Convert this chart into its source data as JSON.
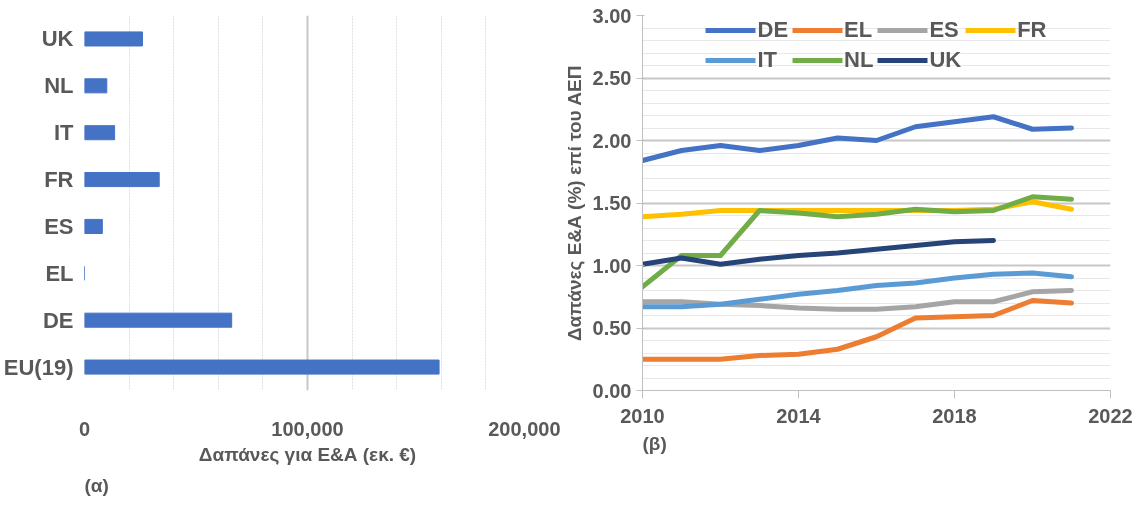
{
  "chart_data": [
    {
      "type": "bar",
      "orientation": "horizontal",
      "xlabel": "Δαπάνες για Ε&Α (εκ. €)",
      "annotations": [
        "(α)"
      ],
      "categories": [
        "UK",
        "NL",
        "IT",
        "FR",
        "ES",
        "EL",
        "DE",
        "EU(19)"
      ],
      "values": [
        26000,
        10000,
        13500,
        33500,
        8000,
        0,
        66000,
        159000
      ],
      "color": "#4472c4",
      "xlim": [
        0,
        200000
      ],
      "xticks": [
        0,
        {
          "value": 100000,
          "label": "100,000"
        },
        {
          "value": 200000,
          "label": "200,000"
        }
      ],
      "grid": "x"
    },
    {
      "type": "line",
      "ylabel": "Δαπάνες Ε&Α (%) επί του ΑΕΠ",
      "annotations": [
        "(β)"
      ],
      "x": [
        2010,
        2011,
        2012,
        2013,
        2014,
        2015,
        2016,
        2017,
        2018,
        2019,
        2020,
        2021
      ],
      "series": [
        {
          "name": "DE",
          "color": "#4472c4",
          "values": [
            1.84,
            1.92,
            1.96,
            1.92,
            1.96,
            2.02,
            2.0,
            2.11,
            2.15,
            2.19,
            2.09,
            2.1
          ]
        },
        {
          "name": "EL",
          "color": "#ed7d31",
          "values": [
            0.25,
            0.25,
            0.25,
            0.28,
            0.29,
            0.33,
            0.43,
            0.58,
            0.59,
            0.6,
            0.72,
            0.7
          ]
        },
        {
          "name": "ES",
          "color": "#a5a5a5",
          "values": [
            0.71,
            0.71,
            0.69,
            0.68,
            0.66,
            0.65,
            0.65,
            0.67,
            0.71,
            0.71,
            0.79,
            0.8
          ]
        },
        {
          "name": "FR",
          "color": "#ffc000",
          "values": [
            1.39,
            1.41,
            1.44,
            1.44,
            1.44,
            1.44,
            1.44,
            1.44,
            1.44,
            1.45,
            1.51,
            1.45
          ]
        },
        {
          "name": "IT",
          "color": "#5b9bd5",
          "values": [
            0.67,
            0.67,
            0.69,
            0.73,
            0.77,
            0.8,
            0.84,
            0.86,
            0.9,
            0.93,
            0.94,
            0.91
          ]
        },
        {
          "name": "NL",
          "color": "#70ad47",
          "values": [
            0.83,
            1.08,
            1.08,
            1.44,
            1.42,
            1.39,
            1.41,
            1.45,
            1.43,
            1.44,
            1.55,
            1.53
          ]
        },
        {
          "name": "UK",
          "color": "#264478",
          "values": [
            1.01,
            1.06,
            1.01,
            1.05,
            1.08,
            1.1,
            1.13,
            1.16,
            1.19,
            1.2,
            null,
            null
          ]
        }
      ],
      "xlim": [
        2010,
        2022
      ],
      "xticks": [
        2010,
        2014,
        2018,
        2022
      ],
      "ylim": [
        0,
        3
      ],
      "yticks": [
        {
          "value": 0,
          "label": "0.00"
        },
        {
          "value": 0.5,
          "label": "0.50"
        },
        {
          "value": 1,
          "label": "1.00"
        },
        {
          "value": 1.5,
          "label": "1.50"
        },
        {
          "value": 2,
          "label": "2.00"
        },
        {
          "value": 2.5,
          "label": "2.50"
        },
        {
          "value": 3,
          "label": "3.00"
        }
      ],
      "grid": "y",
      "legend": "top",
      "marker": "none",
      "line_style": "solid"
    }
  ]
}
